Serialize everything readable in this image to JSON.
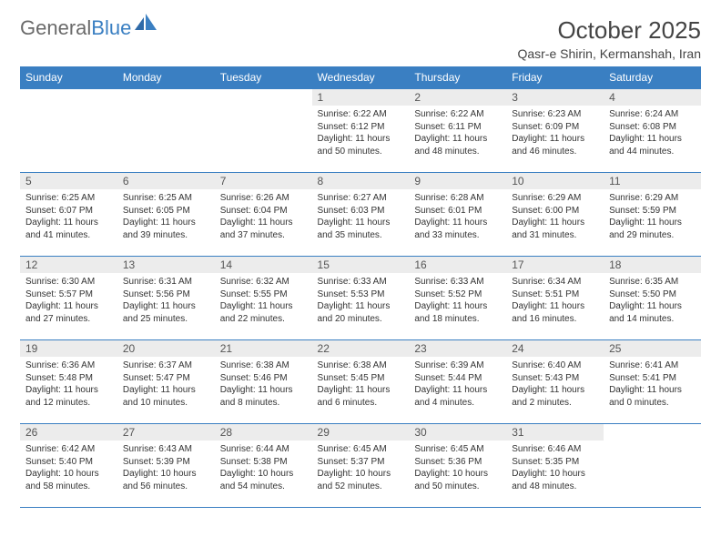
{
  "brand": {
    "part1": "General",
    "part2": "Blue"
  },
  "title": "October 2025",
  "location": "Qasr-e Shirin, Kermanshah, Iran",
  "colors": {
    "accent": "#3a7fc2",
    "header_text": "#ffffff",
    "daynum_bg": "#ececec",
    "text": "#333333",
    "logo_gray": "#6a6a6a"
  },
  "weekdays": [
    "Sunday",
    "Monday",
    "Tuesday",
    "Wednesday",
    "Thursday",
    "Friday",
    "Saturday"
  ],
  "weeks": [
    [
      null,
      null,
      null,
      {
        "n": "1",
        "sr": "6:22 AM",
        "ss": "6:12 PM",
        "dl": "11 hours and 50 minutes."
      },
      {
        "n": "2",
        "sr": "6:22 AM",
        "ss": "6:11 PM",
        "dl": "11 hours and 48 minutes."
      },
      {
        "n": "3",
        "sr": "6:23 AM",
        "ss": "6:09 PM",
        "dl": "11 hours and 46 minutes."
      },
      {
        "n": "4",
        "sr": "6:24 AM",
        "ss": "6:08 PM",
        "dl": "11 hours and 44 minutes."
      }
    ],
    [
      {
        "n": "5",
        "sr": "6:25 AM",
        "ss": "6:07 PM",
        "dl": "11 hours and 41 minutes."
      },
      {
        "n": "6",
        "sr": "6:25 AM",
        "ss": "6:05 PM",
        "dl": "11 hours and 39 minutes."
      },
      {
        "n": "7",
        "sr": "6:26 AM",
        "ss": "6:04 PM",
        "dl": "11 hours and 37 minutes."
      },
      {
        "n": "8",
        "sr": "6:27 AM",
        "ss": "6:03 PM",
        "dl": "11 hours and 35 minutes."
      },
      {
        "n": "9",
        "sr": "6:28 AM",
        "ss": "6:01 PM",
        "dl": "11 hours and 33 minutes."
      },
      {
        "n": "10",
        "sr": "6:29 AM",
        "ss": "6:00 PM",
        "dl": "11 hours and 31 minutes."
      },
      {
        "n": "11",
        "sr": "6:29 AM",
        "ss": "5:59 PM",
        "dl": "11 hours and 29 minutes."
      }
    ],
    [
      {
        "n": "12",
        "sr": "6:30 AM",
        "ss": "5:57 PM",
        "dl": "11 hours and 27 minutes."
      },
      {
        "n": "13",
        "sr": "6:31 AM",
        "ss": "5:56 PM",
        "dl": "11 hours and 25 minutes."
      },
      {
        "n": "14",
        "sr": "6:32 AM",
        "ss": "5:55 PM",
        "dl": "11 hours and 22 minutes."
      },
      {
        "n": "15",
        "sr": "6:33 AM",
        "ss": "5:53 PM",
        "dl": "11 hours and 20 minutes."
      },
      {
        "n": "16",
        "sr": "6:33 AM",
        "ss": "5:52 PM",
        "dl": "11 hours and 18 minutes."
      },
      {
        "n": "17",
        "sr": "6:34 AM",
        "ss": "5:51 PM",
        "dl": "11 hours and 16 minutes."
      },
      {
        "n": "18",
        "sr": "6:35 AM",
        "ss": "5:50 PM",
        "dl": "11 hours and 14 minutes."
      }
    ],
    [
      {
        "n": "19",
        "sr": "6:36 AM",
        "ss": "5:48 PM",
        "dl": "11 hours and 12 minutes."
      },
      {
        "n": "20",
        "sr": "6:37 AM",
        "ss": "5:47 PM",
        "dl": "11 hours and 10 minutes."
      },
      {
        "n": "21",
        "sr": "6:38 AM",
        "ss": "5:46 PM",
        "dl": "11 hours and 8 minutes."
      },
      {
        "n": "22",
        "sr": "6:38 AM",
        "ss": "5:45 PM",
        "dl": "11 hours and 6 minutes."
      },
      {
        "n": "23",
        "sr": "6:39 AM",
        "ss": "5:44 PM",
        "dl": "11 hours and 4 minutes."
      },
      {
        "n": "24",
        "sr": "6:40 AM",
        "ss": "5:43 PM",
        "dl": "11 hours and 2 minutes."
      },
      {
        "n": "25",
        "sr": "6:41 AM",
        "ss": "5:41 PM",
        "dl": "11 hours and 0 minutes."
      }
    ],
    [
      {
        "n": "26",
        "sr": "6:42 AM",
        "ss": "5:40 PM",
        "dl": "10 hours and 58 minutes."
      },
      {
        "n": "27",
        "sr": "6:43 AM",
        "ss": "5:39 PM",
        "dl": "10 hours and 56 minutes."
      },
      {
        "n": "28",
        "sr": "6:44 AM",
        "ss": "5:38 PM",
        "dl": "10 hours and 54 minutes."
      },
      {
        "n": "29",
        "sr": "6:45 AM",
        "ss": "5:37 PM",
        "dl": "10 hours and 52 minutes."
      },
      {
        "n": "30",
        "sr": "6:45 AM",
        "ss": "5:36 PM",
        "dl": "10 hours and 50 minutes."
      },
      {
        "n": "31",
        "sr": "6:46 AM",
        "ss": "5:35 PM",
        "dl": "10 hours and 48 minutes."
      },
      null
    ]
  ],
  "labels": {
    "sunrise": "Sunrise: ",
    "sunset": "Sunset: ",
    "daylight": "Daylight: "
  }
}
